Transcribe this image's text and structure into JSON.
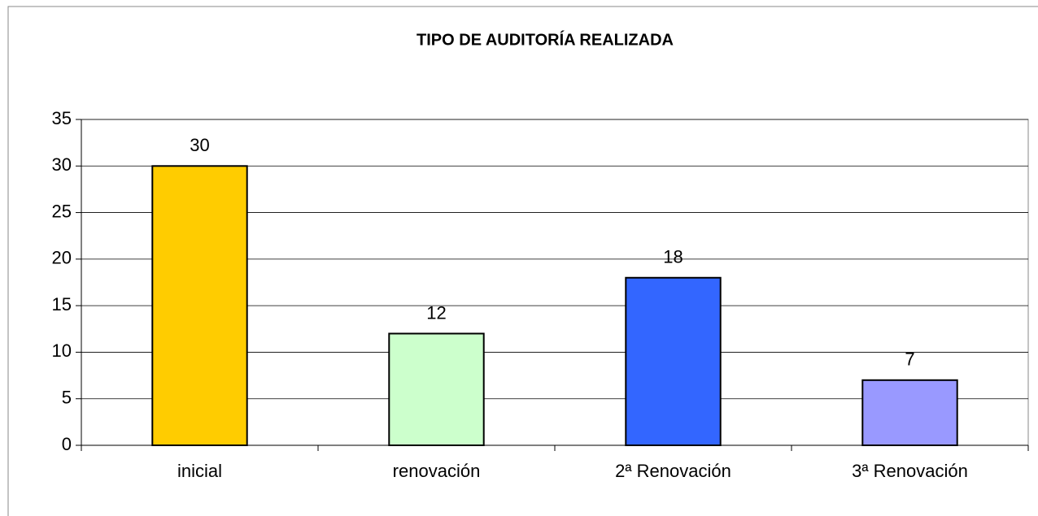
{
  "chart_data": {
    "type": "bar",
    "title": "TIPO DE AUDITORÍA REALIZADA",
    "categories": [
      "inicial",
      "renovación",
      "2ª Renovación",
      "3ª Renovación"
    ],
    "values": [
      30,
      12,
      18,
      7
    ],
    "colors": [
      "#ffcc00",
      "#ccffcc",
      "#3366ff",
      "#9999ff"
    ],
    "ylim": [
      0,
      35
    ],
    "yticks": [
      0,
      5,
      10,
      15,
      20,
      25,
      30,
      35
    ],
    "grid": true
  }
}
